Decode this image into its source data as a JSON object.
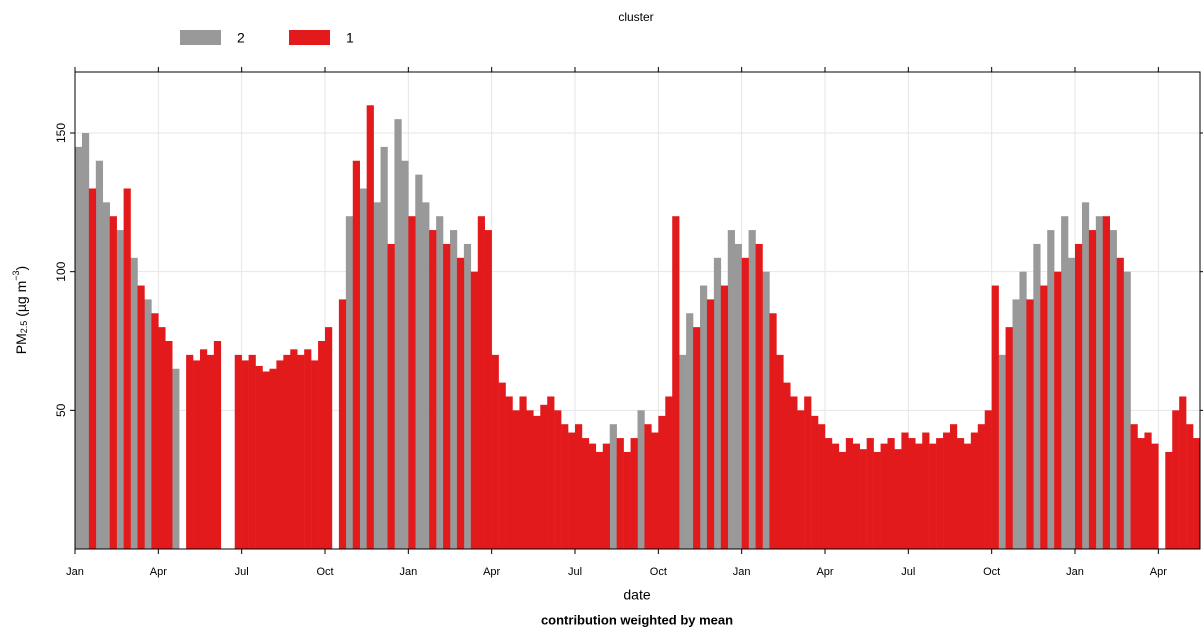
{
  "chart_data": {
    "type": "bar",
    "legend_title": "cluster",
    "xlabel": "date",
    "ylabel_parts": [
      "PM",
      "2.5",
      " (µg m",
      "−3",
      ")"
    ],
    "caption": "contribution weighted by mean",
    "legend_position": "top",
    "grid": true,
    "xlim": [
      0,
      40.5
    ],
    "ylim": [
      0,
      172
    ],
    "xticks": [
      {
        "value": 0,
        "label": "Jan"
      },
      {
        "value": 3,
        "label": "Apr"
      },
      {
        "value": 6,
        "label": "Jul"
      },
      {
        "value": 9,
        "label": "Oct"
      },
      {
        "value": 12,
        "label": "Jan"
      },
      {
        "value": 15,
        "label": "Apr"
      },
      {
        "value": 18,
        "label": "Jul"
      },
      {
        "value": 21,
        "label": "Oct"
      },
      {
        "value": 24,
        "label": "Jan"
      },
      {
        "value": 27,
        "label": "Apr"
      },
      {
        "value": 30,
        "label": "Jul"
      },
      {
        "value": 33,
        "label": "Oct"
      },
      {
        "value": 36,
        "label": "Jan"
      },
      {
        "value": 39,
        "label": "Apr"
      }
    ],
    "yticks": [
      50,
      100,
      150
    ],
    "x": [
      0,
      0.25,
      0.5,
      0.75,
      1,
      1.25,
      1.5,
      1.75,
      2,
      2.25,
      2.5,
      2.75,
      3,
      3.25,
      3.5,
      4,
      4.25,
      4.5,
      4.75,
      5,
      5.75,
      6,
      6.25,
      6.5,
      6.75,
      7,
      7.25,
      7.5,
      7.75,
      8,
      8.25,
      8.5,
      8.75,
      9,
      9.5,
      9.75,
      10,
      10.25,
      10.5,
      10.75,
      11,
      11.25,
      11.5,
      11.75,
      12,
      12.25,
      12.5,
      12.75,
      13,
      13.25,
      13.5,
      13.75,
      14,
      14.25,
      14.5,
      14.75,
      15,
      15.25,
      15.5,
      15.75,
      16,
      16.25,
      16.5,
      16.75,
      17,
      17.25,
      17.5,
      17.75,
      18,
      18.25,
      18.5,
      18.75,
      19,
      19.25,
      19.5,
      19.75,
      20,
      20.25,
      20.5,
      20.75,
      21,
      21.25,
      21.5,
      21.75,
      22,
      22.25,
      22.5,
      22.75,
      23,
      23.25,
      23.5,
      23.75,
      24,
      24.25,
      24.5,
      24.75,
      25,
      25.25,
      25.5,
      25.75,
      26,
      26.25,
      26.5,
      26.75,
      27,
      27.25,
      27.5,
      27.75,
      28,
      28.25,
      28.5,
      28.75,
      29,
      29.25,
      29.5,
      29.75,
      30,
      30.25,
      30.5,
      30.75,
      31,
      31.25,
      31.5,
      31.75,
      32,
      32.25,
      32.5,
      32.75,
      33,
      33.25,
      33.5,
      33.75,
      34,
      34.25,
      34.5,
      34.75,
      35,
      35.25,
      35.5,
      35.75,
      36,
      36.25,
      36.5,
      36.75,
      37,
      37.25,
      37.5,
      37.75,
      38,
      38.25,
      38.5,
      38.75,
      39.25,
      39.5,
      39.75,
      40,
      40.25
    ],
    "series": [
      {
        "name": "2",
        "color": "#999999",
        "values": [
          145,
          150,
          null,
          140,
          125,
          null,
          115,
          null,
          105,
          null,
          90,
          null,
          null,
          null,
          65,
          null,
          null,
          null,
          null,
          null,
          null,
          null,
          null,
          null,
          null,
          null,
          null,
          null,
          null,
          null,
          null,
          null,
          null,
          null,
          null,
          120,
          null,
          130,
          null,
          125,
          145,
          null,
          155,
          140,
          null,
          135,
          125,
          null,
          120,
          null,
          115,
          null,
          110,
          null,
          null,
          null,
          null,
          null,
          null,
          null,
          null,
          null,
          null,
          null,
          null,
          null,
          null,
          null,
          null,
          null,
          null,
          null,
          null,
          45,
          null,
          null,
          null,
          50,
          null,
          null,
          null,
          null,
          null,
          70,
          85,
          null,
          95,
          null,
          105,
          null,
          115,
          110,
          null,
          115,
          null,
          100,
          null,
          null,
          null,
          null,
          null,
          null,
          null,
          null,
          null,
          null,
          null,
          null,
          null,
          null,
          null,
          null,
          null,
          null,
          null,
          null,
          null,
          null,
          null,
          null,
          null,
          null,
          null,
          null,
          null,
          null,
          null,
          null,
          null,
          70,
          null,
          90,
          100,
          null,
          110,
          null,
          115,
          null,
          120,
          105,
          null,
          125,
          null,
          120,
          null,
          115,
          null,
          100,
          null,
          null,
          null,
          null,
          null,
          null,
          null,
          null,
          null
        ]
      },
      {
        "name": "1",
        "color": "#e31a1c",
        "values": [
          null,
          null,
          130,
          null,
          null,
          120,
          null,
          130,
          null,
          95,
          null,
          85,
          80,
          75,
          null,
          70,
          68,
          72,
          70,
          75,
          70,
          68,
          70,
          66,
          64,
          65,
          68,
          70,
          72,
          70,
          72,
          68,
          75,
          80,
          90,
          null,
          140,
          null,
          160,
          null,
          null,
          110,
          null,
          null,
          120,
          null,
          null,
          115,
          null,
          110,
          null,
          105,
          null,
          100,
          120,
          115,
          70,
          60,
          55,
          50,
          55,
          50,
          48,
          52,
          55,
          50,
          45,
          42,
          45,
          40,
          38,
          35,
          38,
          null,
          40,
          35,
          40,
          null,
          45,
          42,
          48,
          55,
          120,
          null,
          null,
          80,
          null,
          90,
          null,
          95,
          null,
          null,
          105,
          null,
          110,
          null,
          85,
          70,
          60,
          55,
          50,
          55,
          48,
          45,
          40,
          38,
          35,
          40,
          38,
          36,
          40,
          35,
          38,
          40,
          36,
          42,
          40,
          38,
          42,
          38,
          40,
          42,
          45,
          40,
          38,
          42,
          45,
          50,
          95,
          null,
          80,
          null,
          null,
          90,
          null,
          95,
          null,
          100,
          null,
          null,
          110,
          null,
          115,
          null,
          120,
          null,
          105,
          null,
          45,
          40,
          42,
          38,
          35,
          50,
          55,
          45,
          40
        ]
      }
    ]
  }
}
